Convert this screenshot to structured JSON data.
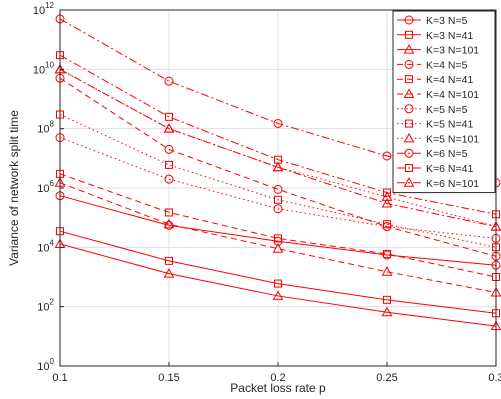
{
  "chart_data": {
    "type": "line",
    "title": "",
    "xlabel": "Packet loss rate p",
    "ylabel": "Variance of network split time",
    "x": [
      0.1,
      0.15,
      0.2,
      0.25,
      0.3
    ],
    "xlim": [
      0.1,
      0.3
    ],
    "ylim": [
      1,
      1000000000000.0
    ],
    "yscale": "log",
    "grid": true,
    "legend_position": "top-right",
    "x_tick_labels": [
      "0.1",
      "0.15",
      "0.2",
      "0.25",
      "0.3"
    ],
    "y_ticks": [
      {
        "value": 1,
        "base": "10",
        "exp": "0"
      },
      {
        "value": 100,
        "base": "10",
        "exp": "2"
      },
      {
        "value": 10000,
        "base": "10",
        "exp": "4"
      },
      {
        "value": 1000000,
        "base": "10",
        "exp": "6"
      },
      {
        "value": 100000000,
        "base": "10",
        "exp": "8"
      },
      {
        "value": 10000000000,
        "base": "10",
        "exp": "10"
      },
      {
        "value": 1000000000000,
        "base": "10",
        "exp": "12"
      }
    ],
    "series_color": "#ff0000",
    "series": [
      {
        "name": "K=3 N=5",
        "values": [
          550000,
          55000,
          16000,
          5500,
          2500
        ],
        "line": "solid",
        "marker": "circle"
      },
      {
        "name": "K=3 N=41",
        "values": [
          35000,
          3500,
          600,
          170,
          60
        ],
        "line": "solid",
        "marker": "square"
      },
      {
        "name": "K=3 N=101",
        "values": [
          13000,
          1300,
          230,
          65,
          22
        ],
        "line": "solid",
        "marker": "triangle"
      },
      {
        "name": "K=4 N=5",
        "values": [
          5000000000,
          20000000,
          900000,
          50000,
          5000
        ],
        "line": "dashed",
        "marker": "circle"
      },
      {
        "name": "K=4 N=41",
        "values": [
          3000000,
          150000,
          20000,
          6000,
          1000
        ],
        "line": "dashed",
        "marker": "square"
      },
      {
        "name": "K=4 N=101",
        "values": [
          1500000,
          60000,
          9000,
          1500,
          300
        ],
        "line": "dashed",
        "marker": "triangle"
      },
      {
        "name": "K=5 N=5",
        "values": [
          50000000,
          2000000,
          200000,
          50000,
          20000
        ],
        "line": "dotted",
        "marker": "circle"
      },
      {
        "name": "K=5 N=41",
        "values": [
          300000000,
          6000000,
          400000,
          60000,
          10000
        ],
        "line": "dotted",
        "marker": "square"
      },
      {
        "name": "K=5 N=101",
        "values": [
          10000000000,
          100000000,
          5000000,
          500000,
          50000
        ],
        "line": "dotted",
        "marker": "triangle"
      },
      {
        "name": "K=6 N=5",
        "values": [
          500000000000,
          4000000000,
          150000000,
          12000000,
          1500000
        ],
        "line": "dashdot",
        "marker": "circle"
      },
      {
        "name": "K=6 N=41",
        "values": [
          30000000000,
          250000000,
          9000000,
          700000,
          130000
        ],
        "line": "dashdot",
        "marker": "square"
      },
      {
        "name": "K=6 N=101",
        "values": [
          10000000000,
          100000000,
          5000000,
          300000,
          50000
        ],
        "line": "dashdot",
        "marker": "triangle"
      }
    ]
  }
}
